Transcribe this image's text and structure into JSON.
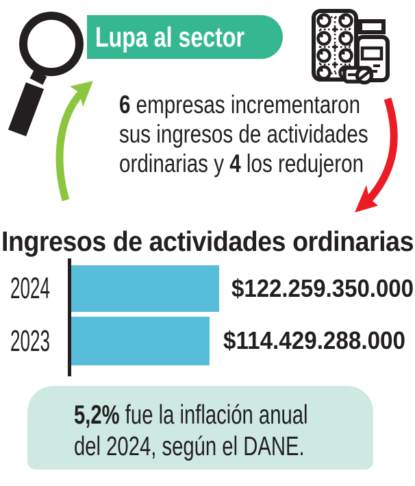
{
  "colors": {
    "banner_green": "#35b792",
    "bar_blue": "#57bddb",
    "note_mint": "#cde9e2",
    "arrow_up_green": "#8cc63e",
    "arrow_down_red": "#ec1c24",
    "ink": "#231f20"
  },
  "header": {
    "badge_label": "Lupa al sector"
  },
  "summary": {
    "line1_bold": "6",
    "line1_rest": " empresas incrementaron",
    "line2": "sus ingresos de actividades",
    "line3_pre": "ordinarias y ",
    "line3_bold": "4",
    "line3_rest": " los redujeron"
  },
  "chart_data": {
    "type": "bar",
    "orientation": "horizontal",
    "title": "Ingresos de actividades ordinarias",
    "categories": [
      "2024",
      "2023"
    ],
    "values": [
      122259350000,
      114429288000
    ],
    "value_labels": [
      "$122.259.350.000",
      "$114.429.288.000"
    ],
    "xlim": [
      0,
      122259350000
    ],
    "bar_color": "#57bddb",
    "grid": false,
    "legend": false
  },
  "note": {
    "bold": "5,2%",
    "line1_rest": " fue la inflación anual",
    "line2": "del 2024, según el DANE."
  }
}
